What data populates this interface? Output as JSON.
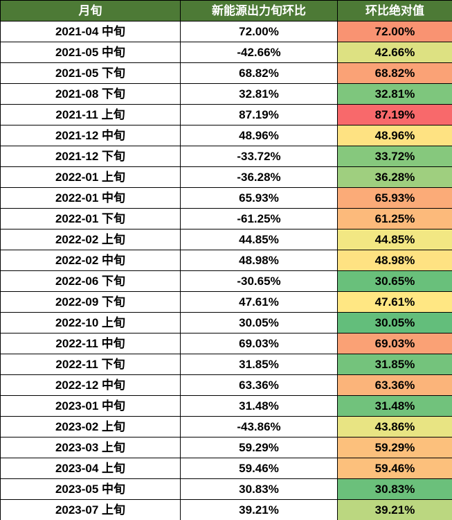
{
  "colors": {
    "header_bg": "#4D7A36",
    "header_text": "#FFFFFF",
    "border": "#000000",
    "cell_text": "#000000",
    "scale_min_color": "#63BE7B",
    "scale_mid_color": "#FFEB84",
    "scale_max_color": "#F8696B"
  },
  "table": {
    "headers": [
      {
        "label": "月旬"
      },
      {
        "label": "新能源出力旬环比"
      },
      {
        "label": "环比绝对值"
      }
    ],
    "rows": [
      {
        "period": "2021-04 中旬",
        "change": "72.00%",
        "abs": "72.00%",
        "abs_color": "#F99372"
      },
      {
        "period": "2021-05 中旬",
        "change": "-42.66%",
        "abs": "42.66%",
        "abs_color": "#DDE182"
      },
      {
        "period": "2021-05 下旬",
        "change": "68.82%",
        "abs": "68.82%",
        "abs_color": "#FAA276"
      },
      {
        "period": "2021-08 下旬",
        "change": "32.81%",
        "abs": "32.81%",
        "abs_color": "#7EC67D"
      },
      {
        "period": "2021-11 上旬",
        "change": "87.19%",
        "abs": "87.19%",
        "abs_color": "#F8696B"
      },
      {
        "period": "2021-12 中旬",
        "change": "48.96%",
        "abs": "48.96%",
        "abs_color": "#FEE282"
      },
      {
        "period": "2021-12 下旬",
        "change": "-33.72%",
        "abs": "33.72%",
        "abs_color": "#86C87D"
      },
      {
        "period": "2022-01 上旬",
        "change": "-36.28%",
        "abs": "36.28%",
        "abs_color": "#9FCF7F"
      },
      {
        "period": "2022-01 中旬",
        "change": "65.93%",
        "abs": "65.93%",
        "abs_color": "#FBAB78"
      },
      {
        "period": "2022-01 下旬",
        "change": "-61.25%",
        "abs": "61.25%",
        "abs_color": "#FCBA7B"
      },
      {
        "period": "2022-02 上旬",
        "change": "44.85%",
        "abs": "44.85%",
        "abs_color": "#F2E783"
      },
      {
        "period": "2022-02 中旬",
        "change": "48.98%",
        "abs": "48.98%",
        "abs_color": "#FEE282"
      },
      {
        "period": "2022-06 下旬",
        "change": "-30.65%",
        "abs": "30.65%",
        "abs_color": "#69C07B"
      },
      {
        "period": "2022-09 下旬",
        "change": "47.61%",
        "abs": "47.61%",
        "abs_color": "#FFE783"
      },
      {
        "period": "2022-10 上旬",
        "change": "30.05%",
        "abs": "30.05%",
        "abs_color": "#63BE7B"
      },
      {
        "period": "2022-11 中旬",
        "change": "69.03%",
        "abs": "69.03%",
        "abs_color": "#FAA175"
      },
      {
        "period": "2022-11 下旬",
        "change": "31.85%",
        "abs": "31.85%",
        "abs_color": "#74C37C"
      },
      {
        "period": "2022-12 中旬",
        "change": "63.36%",
        "abs": "63.36%",
        "abs_color": "#FBB47A"
      },
      {
        "period": "2023-01 中旬",
        "change": "31.48%",
        "abs": "31.48%",
        "abs_color": "#71C27C"
      },
      {
        "period": "2023-02 上旬",
        "change": "-43.86%",
        "abs": "43.86%",
        "abs_color": "#E8E483"
      },
      {
        "period": "2023-03 上旬",
        "change": "59.29%",
        "abs": "59.29%",
        "abs_color": "#FCC07C"
      },
      {
        "period": "2023-04 上旬",
        "change": "59.46%",
        "abs": "59.46%",
        "abs_color": "#FCC07C"
      },
      {
        "period": "2023-05 中旬",
        "change": "30.83%",
        "abs": "30.83%",
        "abs_color": "#6BC07B"
      },
      {
        "period": "2023-07 上旬",
        "change": "39.21%",
        "abs": "39.21%",
        "abs_color": "#BBD780"
      }
    ]
  },
  "chart_data": {
    "type": "table",
    "title": "",
    "columns": [
      "月旬",
      "新能源出力旬环比",
      "环比绝对值"
    ],
    "rows": [
      [
        "2021-04 中旬",
        72.0,
        72.0
      ],
      [
        "2021-05 中旬",
        -42.66,
        42.66
      ],
      [
        "2021-05 下旬",
        68.82,
        68.82
      ],
      [
        "2021-08 下旬",
        32.81,
        32.81
      ],
      [
        "2021-11 上旬",
        87.19,
        87.19
      ],
      [
        "2021-12 中旬",
        48.96,
        48.96
      ],
      [
        "2021-12 下旬",
        -33.72,
        33.72
      ],
      [
        "2022-01 上旬",
        -36.28,
        36.28
      ],
      [
        "2022-01 中旬",
        65.93,
        65.93
      ],
      [
        "2022-01 下旬",
        -61.25,
        61.25
      ],
      [
        "2022-02 上旬",
        44.85,
        44.85
      ],
      [
        "2022-02 中旬",
        48.98,
        48.98
      ],
      [
        "2022-06 下旬",
        -30.65,
        30.65
      ],
      [
        "2022-09 下旬",
        47.61,
        47.61
      ],
      [
        "2022-10 上旬",
        30.05,
        30.05
      ],
      [
        "2022-11 中旬",
        69.03,
        69.03
      ],
      [
        "2022-11 下旬",
        31.85,
        31.85
      ],
      [
        "2022-12 中旬",
        63.36,
        63.36
      ],
      [
        "2023-01 中旬",
        31.48,
        31.48
      ],
      [
        "2023-02 上旬",
        -43.86,
        43.86
      ],
      [
        "2023-03 上旬",
        59.29,
        59.29
      ],
      [
        "2023-04 上旬",
        59.46,
        59.46
      ],
      [
        "2023-05 中旬",
        30.83,
        30.83
      ],
      [
        "2023-07 上旬",
        39.21,
        39.21
      ]
    ],
    "value_unit": "%",
    "color_scale": {
      "applied_to_column": "环比绝对值",
      "min_value": 30.05,
      "mid_value": 46.23,
      "max_value": 87.19,
      "min_color": "#63BE7B",
      "mid_color": "#FFEB84",
      "max_color": "#F8696B"
    },
    "legend_position": "none",
    "grid": true
  }
}
